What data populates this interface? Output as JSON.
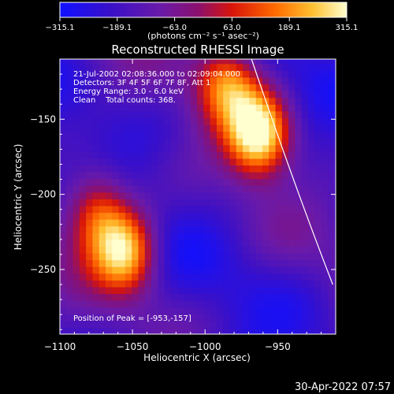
{
  "chart_data": {
    "type": "heatmap",
    "title": "Reconstructed RHESSI Image",
    "xlabel": "Heliocentric X (arcsec)",
    "ylabel": "Heliocentric Y (arcsec)",
    "xlim": [
      -1100,
      -910
    ],
    "ylim": [
      -293,
      -110
    ],
    "x_ticks": [
      -1100,
      -1050,
      -1000,
      -950
    ],
    "x_tick_labels": [
      "−1100",
      "−1050",
      "−1000",
      "−950"
    ],
    "y_ticks": [
      -150,
      -200,
      -250
    ],
    "y_tick_labels": [
      "−150",
      "−200",
      "−250"
    ],
    "colorbar": {
      "min": -315.1,
      "max": 315.1,
      "ticks": [
        -315.1,
        -189.1,
        -63.0,
        63.0,
        189.1,
        315.1
      ],
      "tick_labels": [
        "−315.1",
        "−189.1",
        "−63.0",
        "63.0",
        "189.1",
        "315.1"
      ],
      "unit_label": "(photons cm⁻² s⁻¹ asec⁻²)",
      "colormap": "blue-purple-red-orange-yellow-white"
    },
    "annotations": [
      "21-Jul-2002 02:08:36.000 to 02:09:04.000",
      "Detectors: 3F 4F 5F 6F 7F 8F, Att 1",
      "Energy Range: 3.0 - 6.0 keV",
      "Clean    Total counts: 368."
    ],
    "peak_label": "Position of Peak = [-953,-157]",
    "peak": {
      "x": -953,
      "y": -157
    },
    "sources": [
      {
        "x": -963,
        "y": -160,
        "intensity": 315.1
      },
      {
        "x": -1055,
        "y": -237,
        "intensity": 250
      },
      {
        "x": -1075,
        "y": -210,
        "intensity": 120
      },
      {
        "x": -985,
        "y": -125,
        "intensity": 150
      }
    ],
    "limb_curve": [
      [
        -968,
        -110
      ],
      [
        -940,
        -190
      ],
      [
        -912,
        -260
      ]
    ],
    "grid": false
  },
  "footer_timestamp": "30-Apr-2022 07:57",
  "colors": {
    "background": "#000000",
    "text": "#ffffff"
  }
}
